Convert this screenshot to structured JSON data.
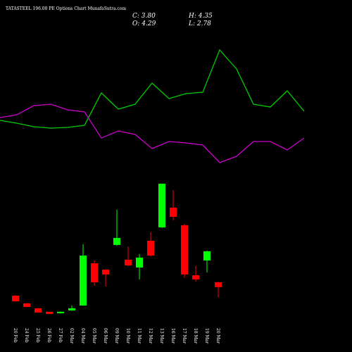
{
  "chart_data": [
    {
      "type": "candlestick",
      "title": "TATASTEEL 196.00 PE Options Chart MunafaSutra.com",
      "summary": {
        "close_label": "C: 3.80",
        "open_label": "O: 4.29",
        "high_label": "H: 4.35",
        "low_label": "L: 2.78"
      },
      "categories": [
        "20 Feb",
        "24 Feb",
        "25 Feb",
        "26 Feb",
        "27 Feb",
        "02 Mar",
        "04 Mar",
        "05 Mar",
        "06 Mar",
        "09 Mar",
        "10 Mar",
        "11 Mar",
        "12 Mar",
        "13 Mar",
        "16 Mar",
        "17 Mar",
        "18 Mar",
        "19 Mar",
        "20 Mar"
      ],
      "open": [
        2.93,
        2.15,
        1.65,
        1.29,
        1.15,
        1.43,
        1.93,
        6.22,
        5.58,
        8.08,
        6.58,
        5.79,
        8.5,
        9.86,
        11.86,
        10.08,
        5.0,
        6.5,
        4.29
      ],
      "high": [
        3.0,
        2.2,
        1.7,
        1.32,
        1.32,
        1.93,
        8.15,
        6.5,
        5.6,
        11.65,
        7.93,
        7.15,
        9.36,
        14.3,
        13.65,
        10.22,
        5.93,
        7.5,
        4.35
      ],
      "low": [
        2.3,
        1.75,
        1.2,
        1.05,
        1.12,
        1.4,
        1.9,
        3.93,
        3.86,
        8.0,
        5.9,
        4.58,
        6.9,
        9.8,
        10.58,
        4.72,
        4.36,
        5.29,
        2.78
      ],
      "close": [
        2.36,
        1.79,
        1.22,
        1.08,
        1.3,
        1.65,
        7.0,
        4.29,
        5.08,
        8.79,
        6.0,
        6.79,
        7.0,
        14.29,
        10.93,
        5.08,
        4.58,
        7.43,
        3.8
      ],
      "up_color": "#00ff00",
      "down_color": "#ff0000",
      "ylim": [
        0,
        15
      ]
    },
    {
      "type": "line",
      "ylim": [
        0,
        100
      ],
      "series": [
        {
          "color": "#00cc00",
          "values": [
            39.5,
            37.5,
            35,
            34,
            34.5,
            36,
            59,
            47.5,
            51,
            66,
            55,
            58.5,
            59.5,
            89.5,
            76,
            51,
            49,
            60.5,
            46
          ]
        },
        {
          "color": "#cc00cc",
          "values": [
            41.5,
            43.5,
            50,
            51,
            47,
            45.5,
            27,
            32,
            29.5,
            19.5,
            24.5,
            23.5,
            22,
            9.5,
            14,
            24.5,
            24.5,
            18.5,
            27
          ]
        }
      ]
    }
  ]
}
